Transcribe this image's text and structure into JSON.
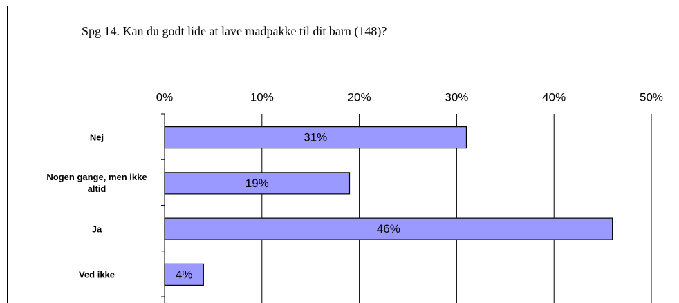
{
  "chart_data": {
    "type": "bar",
    "orientation": "horizontal",
    "title": "Spg 14. Kan du godt lide at lave madpakke til dit barn (148)?",
    "categories": [
      "Nej",
      "Nogen gange, men ikke altid",
      "Ja",
      "Ved ikke"
    ],
    "values": [
      31,
      19,
      46,
      4
    ],
    "value_labels": [
      "31%",
      "19%",
      "46%",
      "4%"
    ],
    "color": "#9999ff",
    "xlim": [
      0,
      50
    ],
    "xticks": [
      {
        "value": 0,
        "label": "0%"
      },
      {
        "value": 10,
        "label": "10%"
      },
      {
        "value": 20,
        "label": "20%"
      },
      {
        "value": 30,
        "label": "30%"
      },
      {
        "value": 40,
        "label": "40%"
      },
      {
        "value": 50,
        "label": "50%"
      }
    ],
    "grid": true
  }
}
